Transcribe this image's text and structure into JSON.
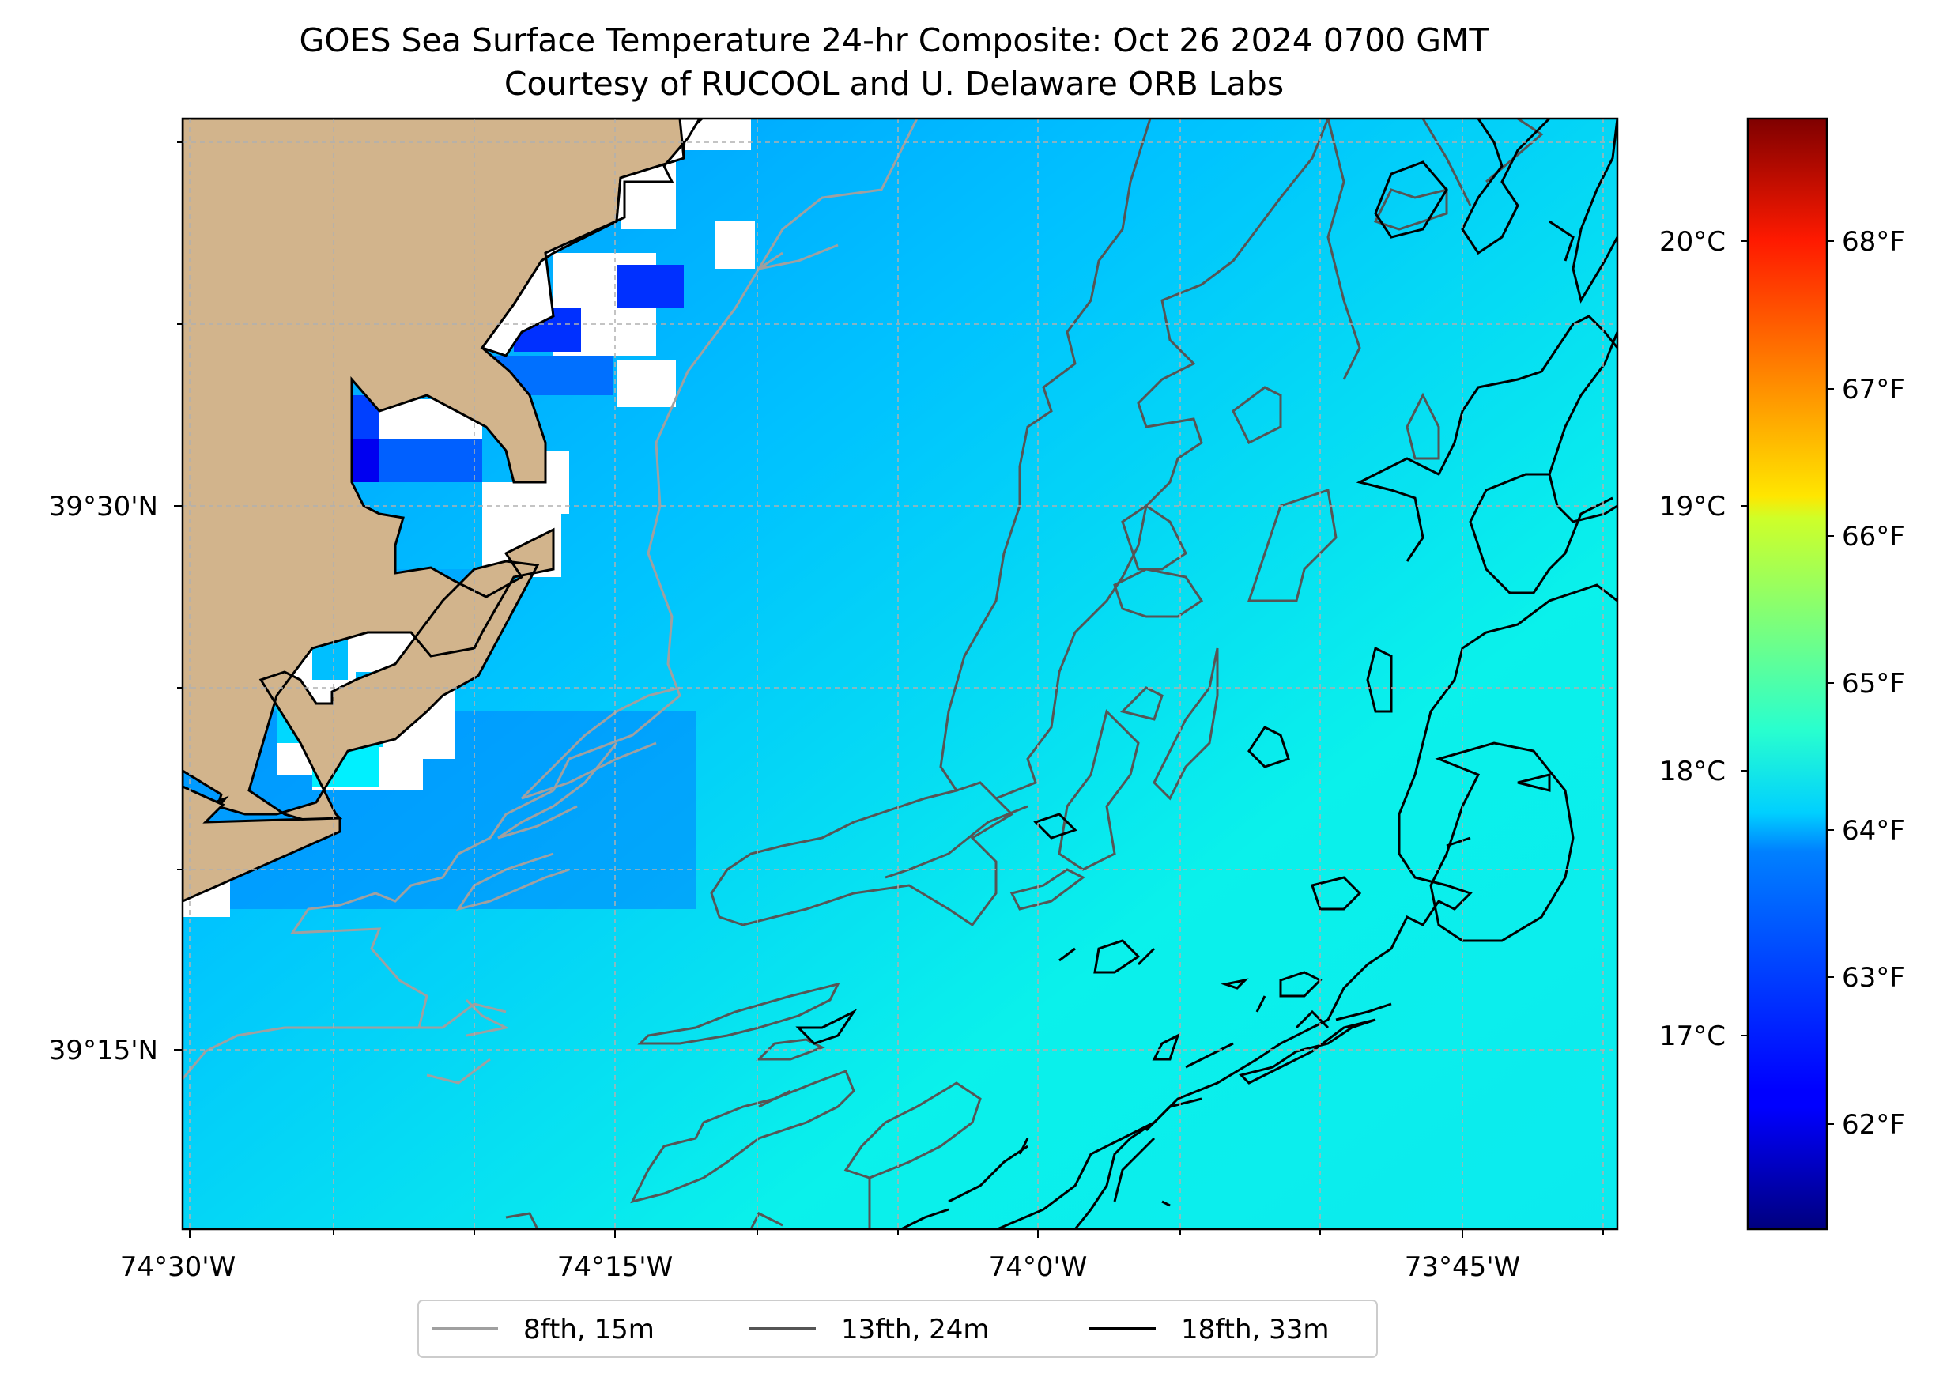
{
  "title": {
    "line1": "GOES Sea Surface Temperature 24-hr Composite: Oct 26 2024 0700 GMT",
    "line2": "Courtesy of RUCOOL and U. Delaware ORB Labs"
  },
  "map": {
    "lon_ticks": [
      "74°30'W",
      "74°15'W",
      "74°0'W",
      "73°45'W"
    ],
    "lat_ticks": [
      "39°30'N",
      "39°15'N"
    ],
    "land_color": "#d2b48c",
    "gridlines": "dashed, light gray"
  },
  "colorbar": {
    "colormap": "jet",
    "celsius_labels": [
      "20°C",
      "19°C",
      "18°C",
      "17°C"
    ],
    "fahrenheit_labels": [
      "68°F",
      "67°F",
      "66°F",
      "65°F",
      "64°F",
      "63°F",
      "62°F"
    ]
  },
  "legend": {
    "placement": "bottom-center",
    "items": [
      {
        "label": "8fth, 15m",
        "color": "#a0a0a0"
      },
      {
        "label": "13fth, 24m",
        "color": "#555555"
      },
      {
        "label": "18fth, 33m",
        "color": "#000000"
      }
    ]
  }
}
